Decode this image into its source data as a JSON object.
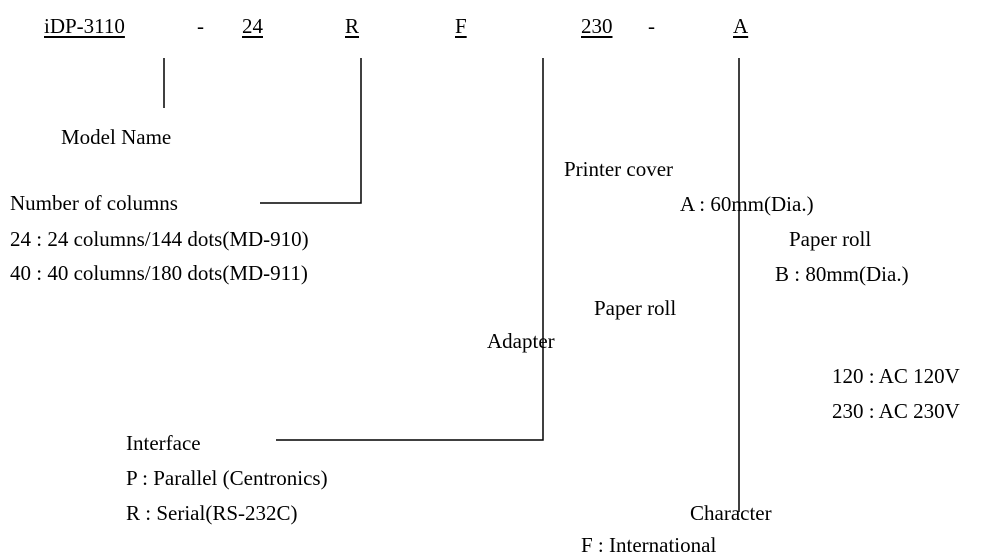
{
  "code": {
    "model": "iDP-3110",
    "dash1": "-",
    "columns": "24",
    "interface": "R",
    "character": "F",
    "voltage": "230",
    "dash2": "-",
    "option": "A"
  },
  "model_name": "Model Name",
  "columns": {
    "title": "Number of columns",
    "opt24": "24 : 24 columns/144 dots(MD-910)",
    "opt40": "40 : 40 columns/180 dots(MD-911)"
  },
  "printer_cover": {
    "title": "Printer cover",
    "a": "A : 60mm(Dia.)",
    "paper_roll_1": "Paper roll",
    "b": "B : 80mm(Dia.)",
    "paper_roll_2": "Paper roll"
  },
  "adapter": {
    "title": "Adapter",
    "v120": "120 : AC 120V",
    "v230": "230 : AC 230V"
  },
  "interface": {
    "title": "Interface",
    "p": "P : Parallel (Centronics)",
    "r": "R : Serial(RS-232C)"
  },
  "character": {
    "title": "Character",
    "f": "F : International"
  }
}
